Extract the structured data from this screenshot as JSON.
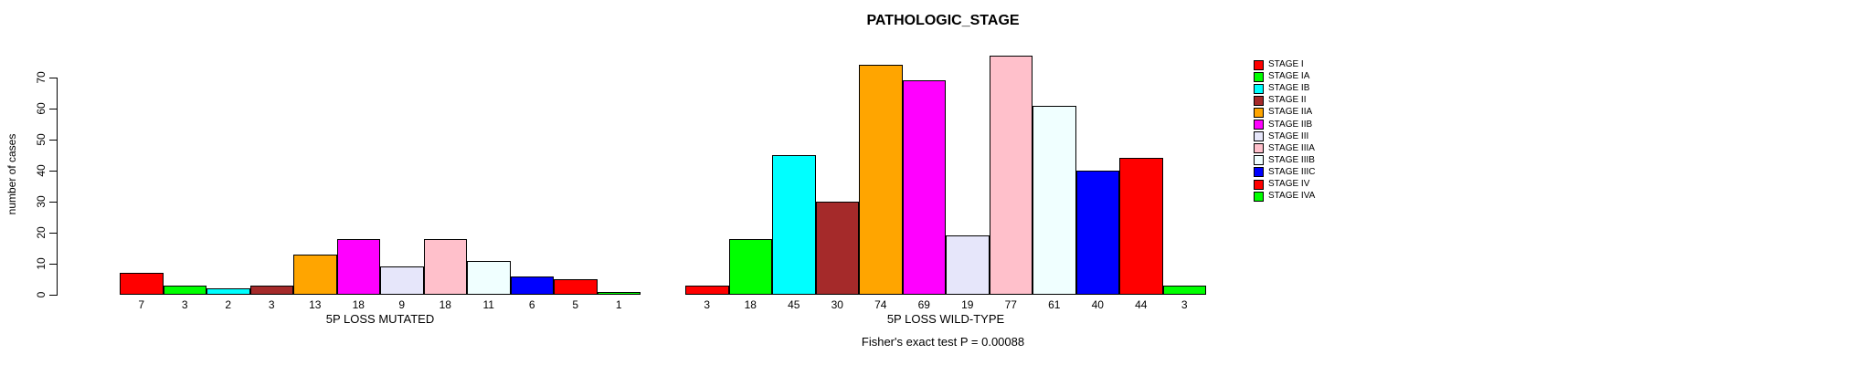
{
  "title": "PATHOLOGIC_STAGE",
  "annotation": "Fisher's exact test P = 0.00088",
  "chart_data": {
    "type": "bar",
    "title": "PATHOLOGIC_STAGE",
    "xlabel": "",
    "ylabel": "number of cases",
    "ylim": [
      0,
      77
    ],
    "yticks": [
      0,
      10,
      20,
      30,
      40,
      50,
      60,
      70
    ],
    "grid": false,
    "legend_position": "right",
    "categories": [
      "STAGE I",
      "STAGE IA",
      "STAGE IB",
      "STAGE II",
      "STAGE IIA",
      "STAGE IIB",
      "STAGE III",
      "STAGE IIIA",
      "STAGE IIIB",
      "STAGE IIIC",
      "STAGE IV",
      "STAGE IVA"
    ],
    "colors": [
      "#FF0000",
      "#00FF00",
      "#00FFFF",
      "#A52A2A",
      "#FFA500",
      "#FF00FF",
      "#E6E6FA",
      "#FFC0CB",
      "#F0FFFF",
      "#0000FF",
      "#FF0000",
      "#00FF00"
    ],
    "groups": [
      {
        "label": "5P LOSS MUTATED",
        "values": [
          7,
          3,
          2,
          3,
          13,
          18,
          9,
          18,
          11,
          6,
          5,
          1
        ]
      },
      {
        "label": "5P LOSS WILD-TYPE",
        "values": [
          3,
          18,
          45,
          30,
          74,
          69,
          19,
          77,
          61,
          40,
          44,
          3
        ]
      }
    ],
    "annotation": "Fisher's exact test P = 0.00088"
  }
}
